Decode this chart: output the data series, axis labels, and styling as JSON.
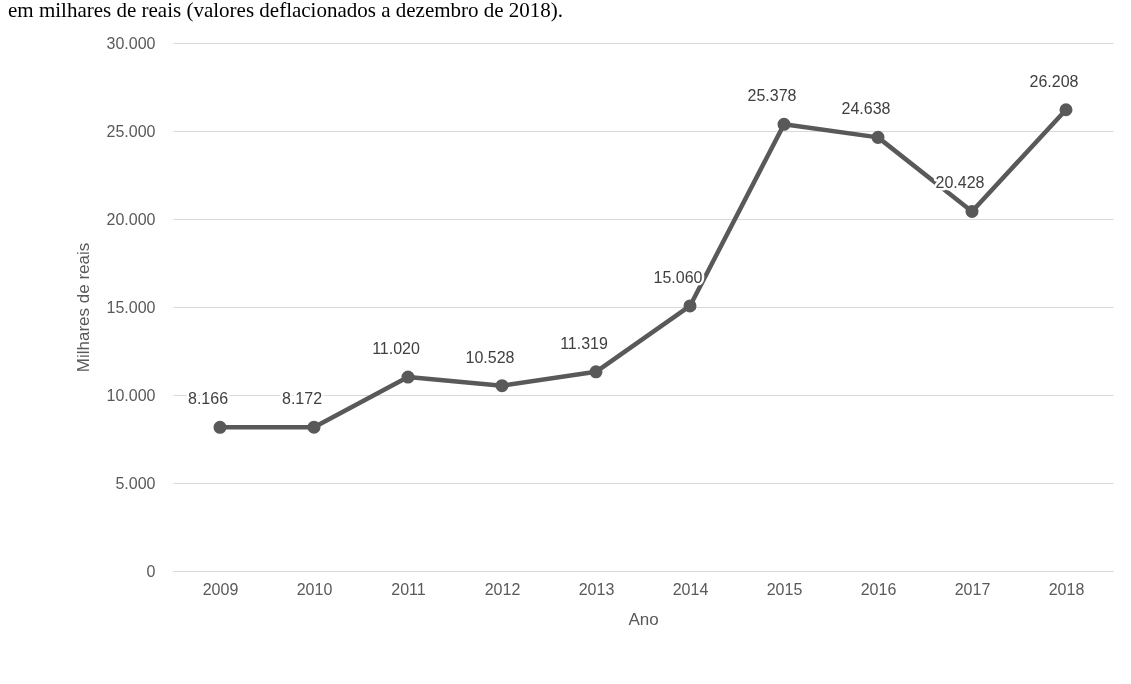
{
  "chart_data": {
    "type": "line",
    "title": "em milhares de reais (valores deflacionados a dezembro de 2018).",
    "xlabel": "Ano",
    "ylabel": "Milhares de reais",
    "categories": [
      "2009",
      "2010",
      "2011",
      "2012",
      "2013",
      "2014",
      "2015",
      "2016",
      "2017",
      "2018"
    ],
    "series": [
      {
        "color": "#595959",
        "values": [
          8166,
          8172,
          11020,
          10528,
          11319,
          15060,
          25378,
          24638,
          20428,
          26208
        ],
        "value_labels": [
          "8.166",
          "8.172",
          "11.020",
          "10.528",
          "11.319",
          "15.060",
          "25.378",
          "24.638",
          "20.428",
          "26.208"
        ]
      }
    ],
    "ylim": [
      0,
      30000
    ],
    "yticks": [
      0,
      {
        "value": 5000,
        "label": "5.000"
      },
      {
        "value": 10000,
        "label": "10.000"
      },
      {
        "value": 15000,
        "label": "15.000"
      },
      {
        "value": 20000,
        "label": "20.000"
      },
      {
        "value": 25000,
        "label": "25.000"
      },
      {
        "value": 30000,
        "label": "30.000"
      }
    ],
    "grid": "y",
    "marker": "circle",
    "line_style": "solid"
  }
}
